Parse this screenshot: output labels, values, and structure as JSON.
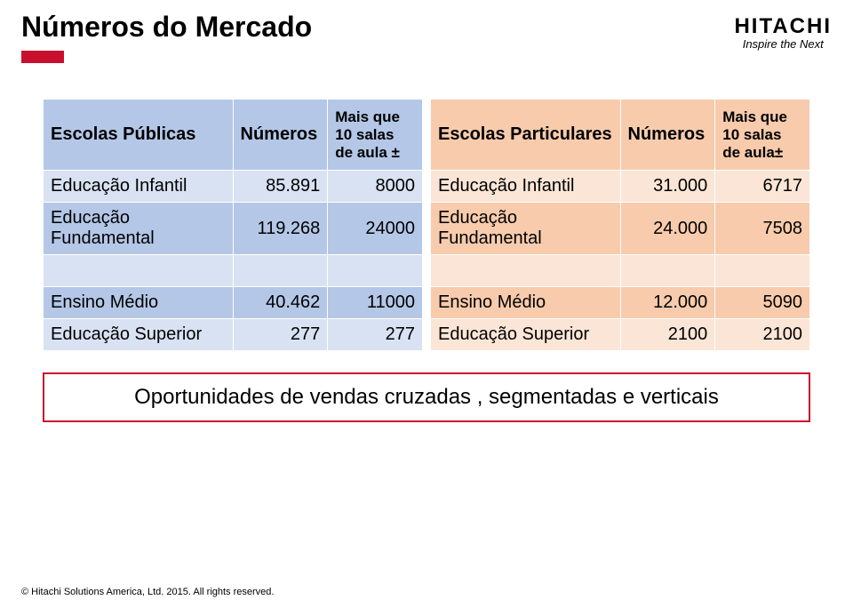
{
  "page": {
    "title": "Números do Mercado",
    "accent_color": "#c8102e",
    "callout_border": "#c8102e"
  },
  "logo": {
    "name": "HITACHI",
    "tagline": "Inspire the Next"
  },
  "tables": {
    "left": {
      "header_bg": "#b4c7e7",
      "row_bg": "#d9e2f3",
      "row_bg_alt": "#b4c7e7",
      "columns": [
        "Escolas Públicas",
        "Números",
        "Mais que 10 salas de aula ±"
      ],
      "rows": [
        {
          "label": "Educação Infantil",
          "num": "85.891",
          "extra": "8000"
        },
        {
          "label": "Educação Fundamental",
          "num": "119.268",
          "extra": "24000"
        },
        {
          "label_spacer": true
        },
        {
          "label": "Ensino Médio",
          "num": "40.462",
          "extra": "11000"
        },
        {
          "label": "Educação Superior",
          "num": "277",
          "extra": "277"
        }
      ]
    },
    "right": {
      "header_bg": "#f7cbac",
      "row_bg": "#fbe5d6",
      "row_bg_alt": "#f7cbac",
      "columns": [
        "Escolas Particulares",
        "Números",
        "Mais que 10 salas de aula±"
      ],
      "rows": [
        {
          "label": "Educação Infantil",
          "num": "31.000",
          "extra": "6717"
        },
        {
          "label": "Educação Fundamental",
          "num": "24.000",
          "extra": "7508"
        },
        {
          "label_spacer": true
        },
        {
          "label": "Ensino Médio",
          "num": "12.000",
          "extra": "5090"
        },
        {
          "label": "Educação Superior",
          "num": "2100",
          "extra": "2100"
        }
      ]
    }
  },
  "callout": {
    "text": "Oportunidades de vendas cruzadas , segmentadas e verticais"
  },
  "footer": {
    "text": "© Hitachi Solutions America, Ltd. 2015. All rights reserved."
  }
}
